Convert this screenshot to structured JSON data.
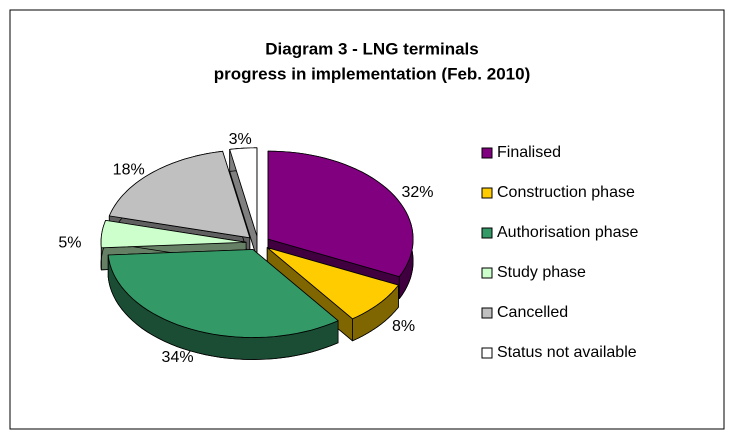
{
  "chart_data": {
    "type": "pie3d",
    "title": [
      "Diagram 3 - LNG terminals",
      "progress in implementation (Feb. 2010)"
    ],
    "categories": [
      "Finalised",
      "Construction phase",
      "Authorisation phase",
      "Study phase",
      "Cancelled",
      "Status not available"
    ],
    "values": [
      32,
      8,
      34,
      5,
      18,
      3
    ],
    "value_labels": [
      "32%",
      "8%",
      "34%",
      "5%",
      "18%",
      "3%"
    ],
    "colors": [
      "#800080",
      "#ffcc00",
      "#339966",
      "#ccffcc",
      "#c0c0c0",
      "#ffffff"
    ],
    "legend": "right"
  }
}
